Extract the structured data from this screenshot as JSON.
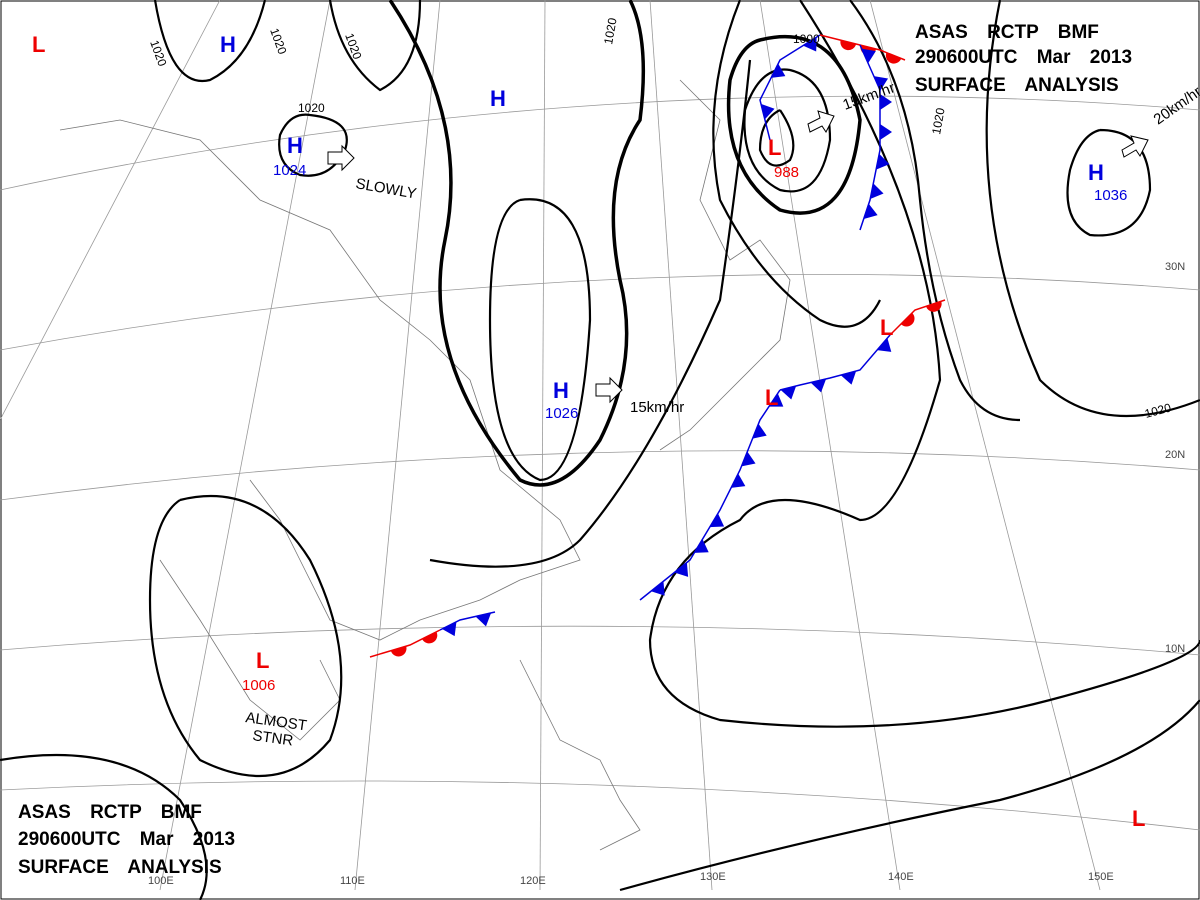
{
  "header_top": {
    "line1": "ASAS RCTP BMF",
    "line2": "290600UTC Mar 2013",
    "line3": "SURFACE ANALYSIS"
  },
  "header_bottom": {
    "line1": "ASAS RCTP BMF",
    "line2": "290600UTC Mar 2013",
    "line3": "SURFACE ANALYSIS"
  },
  "pressure_centers": [
    {
      "label": "L"
    },
    {
      "label": "H"
    },
    {
      "label": "H",
      "value": "1024"
    },
    {
      "label": "H"
    },
    {
      "label": "H",
      "value": "1026"
    },
    {
      "label": "L",
      "value": "988"
    },
    {
      "label": "H",
      "value": "1036"
    },
    {
      "label": "L"
    },
    {
      "label": "L"
    },
    {
      "label": "L",
      "value": "1006"
    },
    {
      "label": "L"
    }
  ],
  "isobar_labels": [
    "1020",
    "1020",
    "1020",
    "1020",
    "1020",
    "1000",
    "1020",
    "1020"
  ],
  "movements": [
    "SLOWLY",
    "15km/hr",
    "15km/hr",
    "20km/hr",
    "ALMOST",
    "STNR"
  ],
  "longitudes": [
    "100E",
    "110E",
    "120E",
    "130E",
    "140E",
    "150E"
  ],
  "latitudes": [
    "30N",
    "20N",
    "10N"
  ]
}
